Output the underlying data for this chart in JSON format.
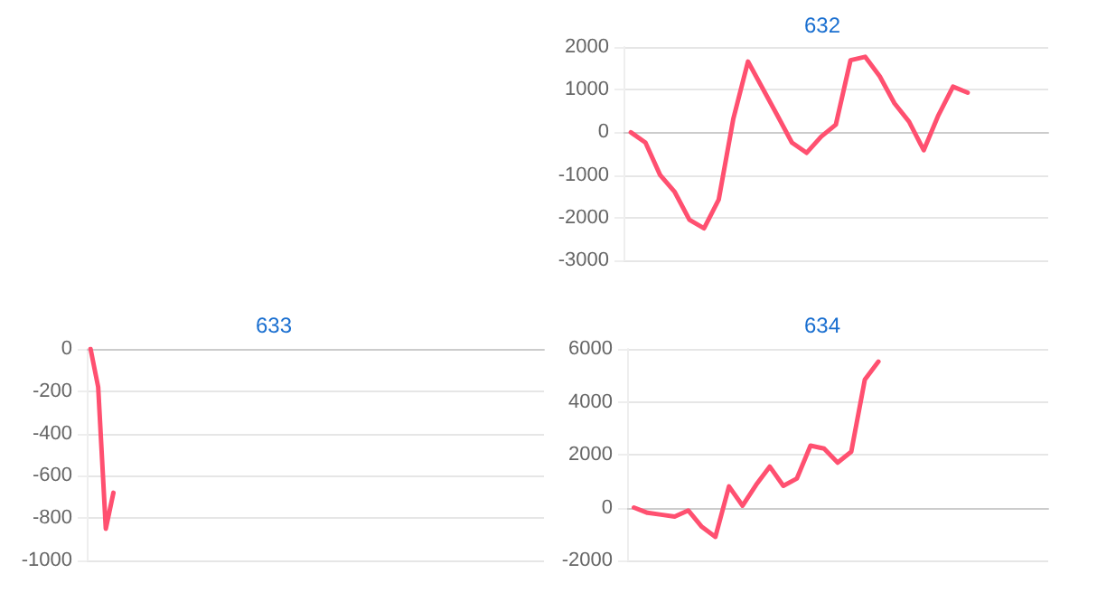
{
  "chart_data": [
    {
      "type": "line",
      "title": "632",
      "categories": [
        null,
        null,
        null,
        null,
        null,
        null,
        null,
        null,
        null,
        null,
        null,
        null,
        null,
        null,
        null,
        null,
        null,
        null,
        null,
        null,
        null,
        null,
        null,
        null,
        null,
        null,
        null,
        null,
        null
      ],
      "series": [
        {
          "color": "#ff5070",
          "values": [
            0,
            -240,
            -1000,
            -1400,
            -2050,
            -2250,
            -1580,
            320,
            1660,
            1030,
            400,
            -240,
            -480,
            -100,
            180,
            1690,
            1770,
            1310,
            680,
            250,
            -420,
            400,
            1070,
            930,
            null,
            null,
            null,
            null,
            null
          ]
        }
      ],
      "ylim": [
        -3000,
        2000
      ],
      "yticks": [
        -3000,
        -2000,
        -1000,
        0,
        1000,
        2000
      ],
      "grid": "y",
      "tick_labels": "y",
      "line_style": "solid"
    },
    {
      "type": "line",
      "title": "633",
      "categories": [
        null,
        null,
        null,
        null,
        null,
        null,
        null,
        null,
        null,
        null,
        null,
        null,
        null,
        null,
        null,
        null,
        null,
        null,
        null,
        null,
        null,
        null,
        null,
        null,
        null,
        null,
        null,
        null,
        null,
        null,
        null,
        null,
        null,
        null,
        null,
        null,
        null,
        null,
        null,
        null,
        null,
        null,
        null,
        null,
        null,
        null,
        null,
        null,
        null,
        null,
        null,
        null,
        null,
        null,
        null,
        null,
        null,
        null,
        null,
        null
      ],
      "series": [
        {
          "color": "#ff5070",
          "values": [
            0,
            -180,
            -850,
            -680,
            null,
            null,
            null,
            null,
            null,
            null,
            null,
            null,
            null,
            null,
            null,
            null,
            null,
            null,
            null,
            null,
            null,
            null,
            null,
            null,
            null,
            null,
            null,
            null,
            null,
            null,
            null,
            null,
            null,
            null,
            null,
            null,
            null,
            null,
            null,
            null,
            null,
            null,
            null,
            null,
            null,
            null,
            null,
            null,
            null,
            null,
            null,
            null,
            null,
            null,
            null,
            null,
            null,
            null,
            null,
            null
          ]
        }
      ],
      "ylim": [
        -1000,
        0
      ],
      "yticks": [
        -1000,
        -800,
        -600,
        -400,
        -200,
        0
      ],
      "grid": "y",
      "tick_labels": "y",
      "line_style": "solid"
    },
    {
      "type": "line",
      "title": "634",
      "categories": [
        null,
        null,
        null,
        null,
        null,
        null,
        null,
        null,
        null,
        null,
        null,
        null,
        null,
        null,
        null,
        null,
        null,
        null,
        null,
        null,
        null,
        null,
        null,
        null,
        null,
        null,
        null,
        null,
        null,
        null,
        null
      ],
      "series": [
        {
          "color": "#ff5070",
          "values": [
            0,
            -200,
            -270,
            -340,
            -110,
            -730,
            -1110,
            800,
            70,
            860,
            1550,
            820,
            1100,
            2340,
            2230,
            1700,
            2110,
            4840,
            5520,
            null,
            null,
            null,
            null,
            null,
            null,
            null,
            null,
            null,
            null,
            null,
            null
          ]
        }
      ],
      "ylim": [
        -2000,
        6000
      ],
      "yticks": [
        -2000,
        0,
        2000,
        4000,
        6000
      ],
      "grid": "y",
      "tick_labels": "y",
      "line_style": "solid"
    }
  ]
}
